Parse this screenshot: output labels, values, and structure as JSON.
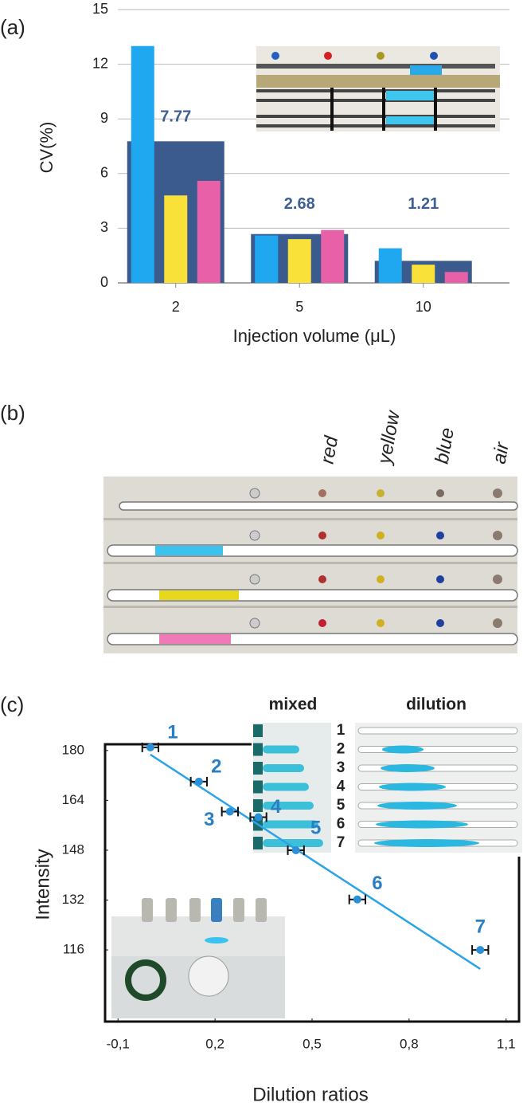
{
  "chart_data": [
    {
      "type": "bar",
      "panel_label": "(a)",
      "y_label": "CV(%)",
      "x_label": "Injection volume (μL)",
      "categories": [
        "2",
        "5",
        "10"
      ],
      "mean": {
        "color": "#3b5a8e",
        "values": [
          7.77,
          2.68,
          1.21
        ]
      },
      "series": [
        {
          "color": "#1fa8f0",
          "values": [
            13.0,
            2.6,
            1.9
          ]
        },
        {
          "color": "#f9e13a",
          "values": [
            4.8,
            2.4,
            1.0
          ]
        },
        {
          "color": "#e860a8",
          "values": [
            5.6,
            2.9,
            0.6
          ]
        }
      ],
      "value_label_color": "#3d5f93",
      "ylim": [
        0,
        15
      ],
      "yticks": [
        0,
        3,
        6,
        9,
        12,
        15
      ],
      "grid": true
    },
    {
      "type": "scatter",
      "panel_label": "(c)",
      "y_label": "Intensity",
      "x_label": "Dilution ratios",
      "x": [
        0.0,
        0.15,
        0.246,
        0.334,
        0.45,
        0.64,
        1.02
      ],
      "y": [
        181,
        170,
        160.4,
        158.6,
        148,
        132.2,
        116
      ],
      "xerr": [
        0.025,
        0.025,
        0.025,
        0.025,
        0.025,
        0.025,
        0.025
      ],
      "point_labels": [
        "1",
        "2",
        "3",
        "4",
        "5",
        "6",
        "7"
      ],
      "color": "#2a8fd6",
      "label_color": "#2a7fc4",
      "trend": {
        "color": "#2aa3e8",
        "x": [
          0.0,
          1.02
        ],
        "y": [
          178.7,
          109.9
        ]
      },
      "xlim": [
        -0.14,
        1.14
      ],
      "xticks": [
        {
          "value": -0.1,
          "label": "-0,1"
        },
        {
          "value": 0.2,
          "label": "0,2"
        },
        {
          "value": 0.5,
          "label": "0,5"
        },
        {
          "value": 0.8,
          "label": "0,8"
        },
        {
          "value": 1.1,
          "label": "1,1"
        }
      ],
      "ylim": [
        93,
        182
      ],
      "yticks": [
        116,
        132,
        148,
        164,
        180
      ],
      "inset": {
        "mixed": "mixed",
        "dilution": "dilution",
        "numbers": [
          "1",
          "2",
          "3",
          "4",
          "5",
          "6",
          "7"
        ]
      }
    }
  ],
  "photo_b": {
    "panel_label": "(b)",
    "color_labels": [
      "red",
      "yellow",
      "blue",
      "air"
    ]
  }
}
